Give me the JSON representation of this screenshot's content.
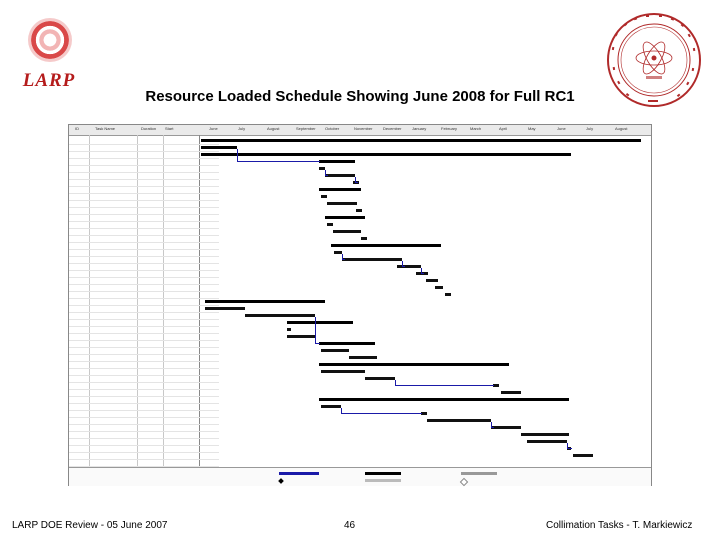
{
  "logos": {
    "left_text": "LARP"
  },
  "title": "Resource Loaded Schedule Showing June 2008 for Full RC1",
  "gantt": {
    "headers": {
      "id": "ID",
      "task": "Task Name",
      "duration": "Duration",
      "start": "Start"
    },
    "months": [
      "June",
      "July",
      "August",
      "September",
      "October",
      "November",
      "December",
      "January",
      "February",
      "March",
      "April",
      "May",
      "June",
      "July",
      "August"
    ]
  },
  "footer": {
    "left": "LARP DOE Review - 05 June 2007",
    "center": "46",
    "right": "Collimation Tasks - T. Markiewicz"
  }
}
